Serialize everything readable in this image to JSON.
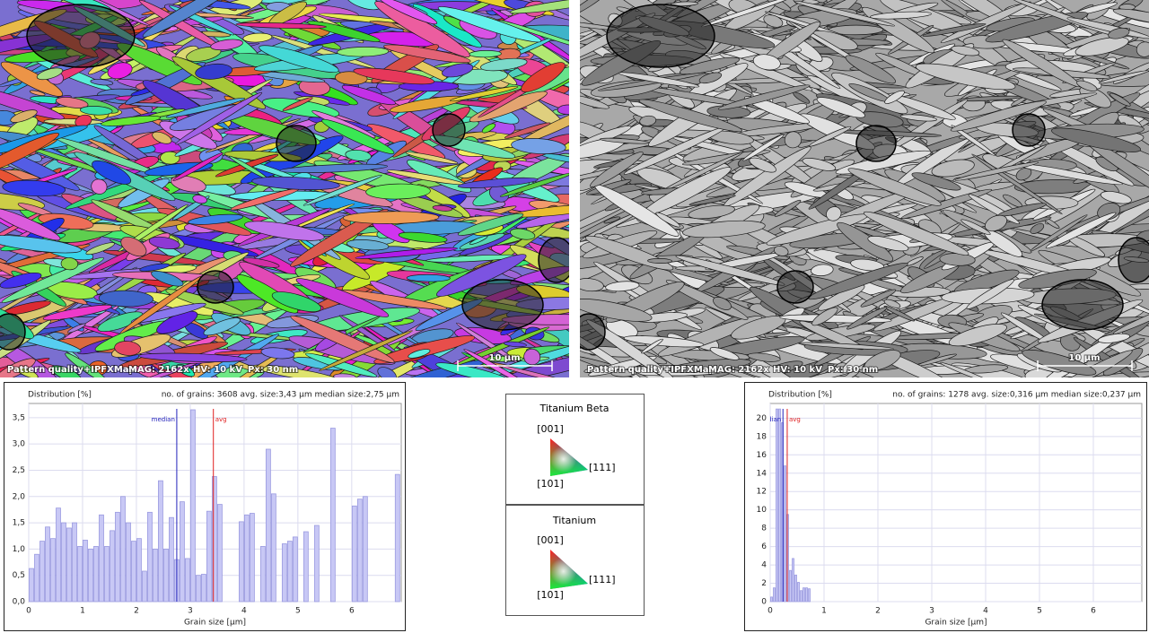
{
  "images": [
    {
      "caption": "Pattern quality+IPFXMap",
      "mag": "MAG: 2162x",
      "hv": "HV: 10 kV",
      "px": "Px: 30 nm",
      "scale": "10 µm"
    },
    {
      "caption": "Pattern quality+IPFXMap",
      "mag": "MAG: 2162x",
      "hv": "HV: 10 kV",
      "px": "Px: 30 nm",
      "scale": "10 µm"
    }
  ],
  "legends": [
    {
      "title": "Titanium Beta",
      "poles": [
        "[001]",
        "[111]",
        "[101]"
      ]
    },
    {
      "title": "Titanium",
      "poles": [
        "[001]",
        "[111]",
        "[101]"
      ]
    }
  ],
  "chart_data": [
    {
      "type": "histogram",
      "title": "Distribution [%]",
      "subtitle": "no. of grains: 3608  avg. size:3,43 µm median size:2,75 µm",
      "xlabel": "Grain size [µm]",
      "color": "#c8c8f5",
      "bins": [
        0,
        0.1,
        0.2,
        0.3,
        0.4,
        0.5,
        0.6,
        0.7,
        0.8,
        0.9,
        1,
        1.1,
        1.2,
        1.3,
        1.4,
        1.5,
        1.6,
        1.7,
        1.8,
        1.9,
        2,
        2.1,
        2.2,
        2.3,
        2.4,
        2.5,
        2.6,
        2.7,
        2.8,
        2.9,
        3,
        3.1,
        3.2,
        3.3,
        3.4,
        3.5,
        3.6,
        3.7,
        3.8,
        3.9,
        4,
        4.1,
        4.2,
        4.3,
        4.4,
        4.5,
        4.6,
        4.7,
        4.8,
        4.9,
        5,
        5.1,
        5.2,
        5.3,
        5.4,
        5.5,
        5.6,
        5.7,
        5.8,
        5.9,
        6,
        6.1,
        6.2,
        6.3,
        6.4,
        6.5,
        6.6,
        6.7,
        6.8,
        6.9
      ],
      "values": [
        0.63,
        0.9,
        1.15,
        1.42,
        1.2,
        1.78,
        1.5,
        1.4,
        1.5,
        1.05,
        1.17,
        1.0,
        1.05,
        1.65,
        1.05,
        1.35,
        1.7,
        2.0,
        1.5,
        1.15,
        1.2,
        0.58,
        1.7,
        1.0,
        2.3,
        1.0,
        1.6,
        0.8,
        1.9,
        0.82,
        3.65,
        0.5,
        0.52,
        1.72,
        2.38,
        1.85,
        0,
        0,
        0,
        1.52,
        1.65,
        1.68,
        0,
        1.05,
        2.9,
        2.05,
        0,
        1.1,
        1.15,
        1.23,
        0,
        1.33,
        0,
        1.45,
        0,
        0,
        3.3,
        0,
        0,
        0,
        1.82,
        1.95,
        2.0,
        0,
        0,
        0,
        0,
        0,
        2.42
      ],
      "xlim": [
        0,
        6.92
      ],
      "ylim": [
        0,
        3.77
      ],
      "xticks": [
        0,
        1,
        2,
        3,
        4,
        5,
        6
      ],
      "yticks": [
        {
          "value": 0,
          "label": "0,0"
        },
        {
          "value": 0.5,
          "label": "0,5"
        },
        {
          "value": 1,
          "label": "1,0"
        },
        {
          "value": 1.5,
          "label": "1,5"
        },
        {
          "value": 2,
          "label": "2,0"
        },
        {
          "value": 2.5,
          "label": "2,5"
        },
        {
          "value": 3,
          "label": "3,0"
        },
        {
          "value": 3.5,
          "label": "3,5"
        }
      ],
      "grid": true,
      "markers": [
        {
          "label": "median",
          "value": 2.75,
          "color": "#2222bb"
        },
        {
          "label": "avg",
          "value": 3.43,
          "color": "#e02020"
        }
      ]
    },
    {
      "type": "histogram",
      "title": "Distribution [%]",
      "subtitle": "no. of grains: 1278  avg. size:0,316 µm median size:0,237 µm",
      "xlabel": "Grain size [µm]",
      "color": "#c8c8f5",
      "bins": [
        0,
        0.05,
        0.1,
        0.15,
        0.2,
        0.25,
        0.3,
        0.35,
        0.4,
        0.45,
        0.5,
        0.55,
        0.6,
        0.65,
        0.7,
        0.75,
        0.8
      ],
      "values": [
        0.5,
        1.5,
        21,
        21,
        19.5,
        14.8,
        9.5,
        3.4,
        4.7,
        2.9,
        2.1,
        1.2,
        1.5,
        1.5,
        1.4,
        0
      ],
      "xlim": [
        0,
        6.9
      ],
      "ylim": [
        0,
        21.6
      ],
      "xticks": [
        0,
        1,
        2,
        3,
        4,
        5,
        6
      ],
      "yticks": [
        0,
        2,
        4,
        6,
        8,
        10,
        12,
        14,
        16,
        18,
        20
      ],
      "grid": true,
      "markers": [
        {
          "label": "median",
          "value": 0.237,
          "color": "#2222bb"
        },
        {
          "label": "avg",
          "value": 0.316,
          "color": "#e02020"
        }
      ]
    }
  ]
}
